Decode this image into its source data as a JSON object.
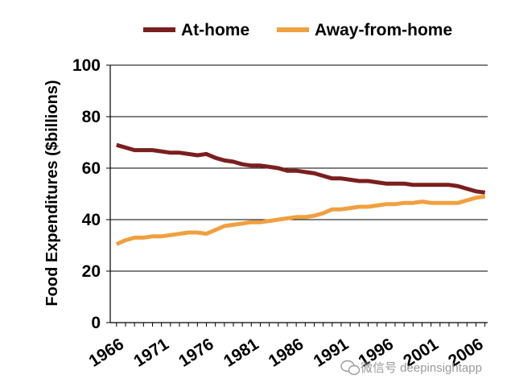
{
  "chart_data": {
    "type": "line",
    "title": "",
    "xlabel": "",
    "ylabel": "Food Expenditures ($billions)",
    "ylim": [
      0,
      100
    ],
    "yticks": [
      "0",
      "20",
      "40",
      "60",
      "80",
      "100"
    ],
    "xticks": [
      "1966",
      "1971",
      "1976",
      "1981",
      "1986",
      "1991",
      "1996",
      "2001",
      "2006"
    ],
    "grid": true,
    "legend_position": "top",
    "x": [
      1966,
      1967,
      1968,
      1969,
      1970,
      1971,
      1972,
      1973,
      1974,
      1975,
      1976,
      1977,
      1978,
      1979,
      1980,
      1981,
      1982,
      1983,
      1984,
      1985,
      1986,
      1987,
      1988,
      1989,
      1990,
      1991,
      1992,
      1993,
      1994,
      1995,
      1996,
      1997,
      1998,
      1999,
      2000,
      2001,
      2002,
      2003,
      2004,
      2005,
      2006,
      2007
    ],
    "series": [
      {
        "name": "At-home",
        "color": "#7b1e1e",
        "values": [
          69,
          68,
          67,
          67,
          67,
          66.5,
          66,
          66,
          65.5,
          65,
          65.5,
          64,
          63,
          62.5,
          61.5,
          61,
          61,
          60.5,
          60,
          59,
          59,
          58.5,
          58,
          57,
          56,
          56,
          55.5,
          55,
          55,
          54.5,
          54,
          54,
          54,
          53.5,
          53.5,
          53.5,
          53.5,
          53.5,
          53,
          52,
          51,
          50.5
        ]
      },
      {
        "name": "Away-from-home",
        "color": "#f0a040",
        "values": [
          30.5,
          32,
          33,
          33,
          33.5,
          33.5,
          34,
          34.5,
          35,
          35,
          34.5,
          36,
          37.5,
          38,
          38.5,
          39,
          39,
          39.5,
          40,
          40.5,
          41,
          41,
          41.5,
          42.5,
          44,
          44,
          44.5,
          45,
          45,
          45.5,
          46,
          46,
          46.5,
          46.5,
          47,
          46.5,
          46.5,
          46.5,
          46.5,
          47.5,
          48.5,
          49
        ]
      }
    ]
  },
  "watermark": {
    "text": "微信号 deepinsightapp",
    "icon": "wechat-icon"
  }
}
